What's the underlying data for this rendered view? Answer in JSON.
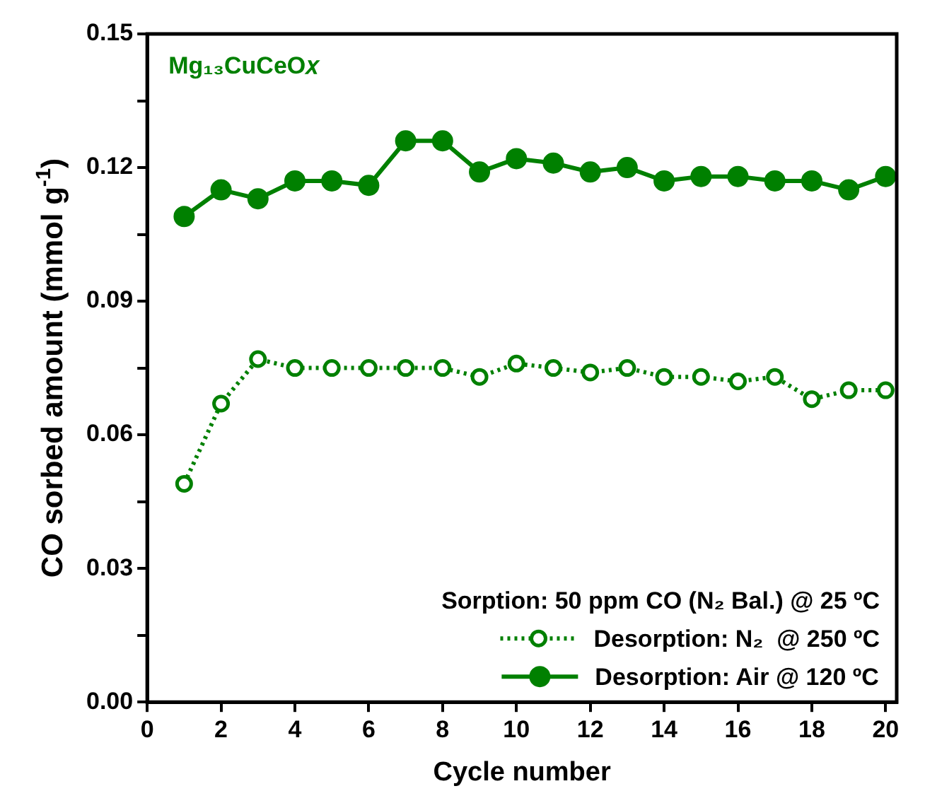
{
  "chart_data": {
    "type": "line",
    "xlabel": "Cycle number",
    "ylabel": "CO sorbed amount (mmol g$^{-1}$)",
    "legend_title": "Sorption: 50 ppm CO (N₂ Bal.) @ 25 ºC",
    "annotations": [
      "Mg₁₃CuCeO𝑥"
    ],
    "x": [
      1,
      2,
      3,
      4,
      5,
      6,
      7,
      8,
      9,
      10,
      11,
      12,
      13,
      14,
      15,
      16,
      17,
      18,
      19,
      20
    ],
    "series": [
      {
        "name": "Desorption: N₂  @ 250 ºC",
        "color": "#008000",
        "line_style": "dotted",
        "values": [
          0.049,
          0.067,
          0.077,
          0.075,
          0.075,
          0.075,
          0.075,
          0.075,
          0.073,
          0.076,
          0.075,
          0.074,
          0.075,
          0.073,
          0.073,
          0.072,
          0.073,
          0.068,
          0.07,
          0.07
        ]
      },
      {
        "name": "Desorption: Air @ 120 ºC",
        "color": "#008000",
        "line_style": "solid",
        "values": [
          0.109,
          0.115,
          0.113,
          0.117,
          0.117,
          0.116,
          0.126,
          0.126,
          0.119,
          0.122,
          0.121,
          0.119,
          0.12,
          0.117,
          0.118,
          0.118,
          0.117,
          0.117,
          0.115,
          0.118
        ]
      }
    ],
    "xlim": [
      0,
      20.3
    ],
    "xticks": [
      0,
      2,
      4,
      6,
      8,
      10,
      12,
      14,
      16,
      18,
      20
    ],
    "ylim": [
      0,
      0.15
    ],
    "yticks": [
      {
        "value": 0,
        "label": "0.00"
      },
      {
        "value": 0.015,
        "label": null
      },
      {
        "value": 0.03,
        "label": "0.03"
      },
      {
        "value": 0.045,
        "label": null
      },
      {
        "value": 0.06,
        "label": "0.06"
      },
      {
        "value": 0.075,
        "label": null
      },
      {
        "value": 0.09,
        "label": "0.09"
      },
      {
        "value": 0.105,
        "label": null
      },
      {
        "value": 0.12,
        "label": "0.12"
      },
      {
        "value": 0.135,
        "label": null
      },
      {
        "value": 0.15,
        "label": "0.15"
      }
    ],
    "grid": false,
    "legend": "bottom right",
    "marker": "circle"
  }
}
